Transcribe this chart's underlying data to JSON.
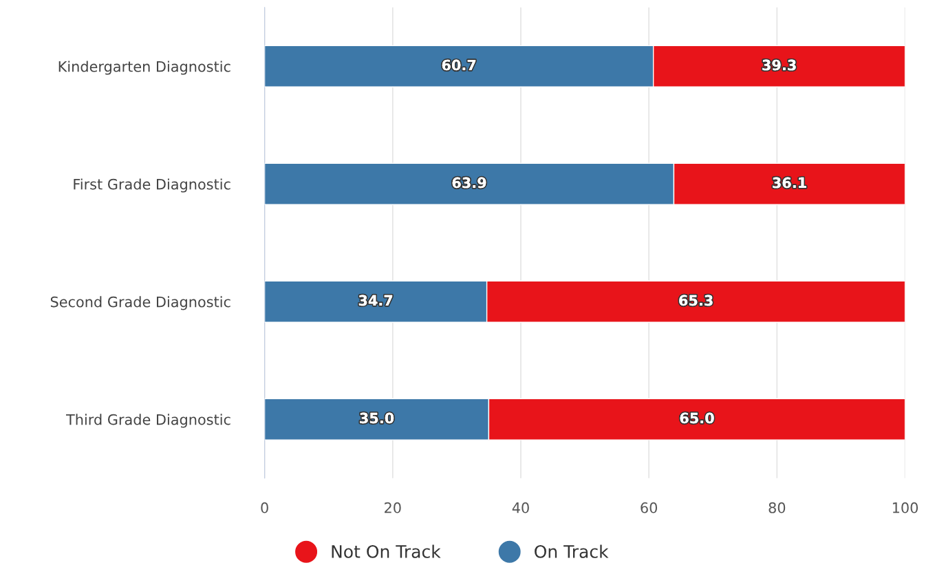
{
  "chart_data": {
    "type": "bar",
    "orientation": "horizontal",
    "stacked": true,
    "categories": [
      "Kindergarten Diagnostic",
      "First Grade Diagnostic",
      "Second Grade Diagnostic",
      "Third Grade Diagnostic"
    ],
    "series": [
      {
        "name": "On Track",
        "color": "#3d78a8",
        "values": [
          60.7,
          63.9,
          34.7,
          35.0
        ],
        "value_labels": [
          "60.7",
          "63.9",
          "34.7",
          "35.0"
        ]
      },
      {
        "name": "Not On Track",
        "color": "#e8141a",
        "values": [
          39.3,
          36.1,
          65.3,
          65.0
        ],
        "value_labels": [
          "39.3",
          "36.1",
          "65.3",
          "65.0"
        ]
      }
    ],
    "xlim": [
      0,
      100
    ],
    "xticks": [
      0,
      20,
      40,
      60,
      80,
      100
    ],
    "grid": "x",
    "legend": "bottom"
  }
}
